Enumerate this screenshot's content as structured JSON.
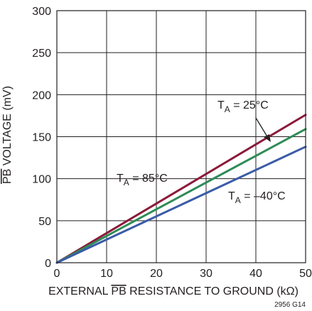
{
  "chart_data": {
    "type": "line",
    "xlabel_prefix": "EXTERNAL ",
    "xlabel_bar": "PB",
    "xlabel_suffix": " RESISTANCE TO GROUND (kΩ)",
    "ylabel_bar": "PB",
    "ylabel_suffix": " VOLTAGE (mV)",
    "xlim": [
      0,
      50
    ],
    "ylim": [
      0,
      300
    ],
    "x_ticks": [
      0,
      10,
      20,
      30,
      40,
      50
    ],
    "y_ticks": [
      0,
      50,
      100,
      150,
      200,
      250,
      300
    ],
    "grid": true,
    "figure_note": "2956 G14",
    "series": [
      {
        "name": "TA = 85°C",
        "label_main": "T",
        "label_sub": "A",
        "label_rest": " = 85°C",
        "color": "#8b1a3a",
        "x": [
          0,
          50
        ],
        "y": [
          0,
          176
        ]
      },
      {
        "name": "TA = 25°C",
        "label_main": "T",
        "label_sub": "A",
        "label_rest": " = 25°C",
        "color": "#2e8b57",
        "x": [
          0,
          50
        ],
        "y": [
          0,
          159
        ]
      },
      {
        "name": "TA = –40°C",
        "label_main": "T",
        "label_sub": "A",
        "label_rest": " = –40°C",
        "color": "#3a5ba8",
        "x": [
          0,
          50
        ],
        "y": [
          0,
          138
        ]
      }
    ]
  }
}
